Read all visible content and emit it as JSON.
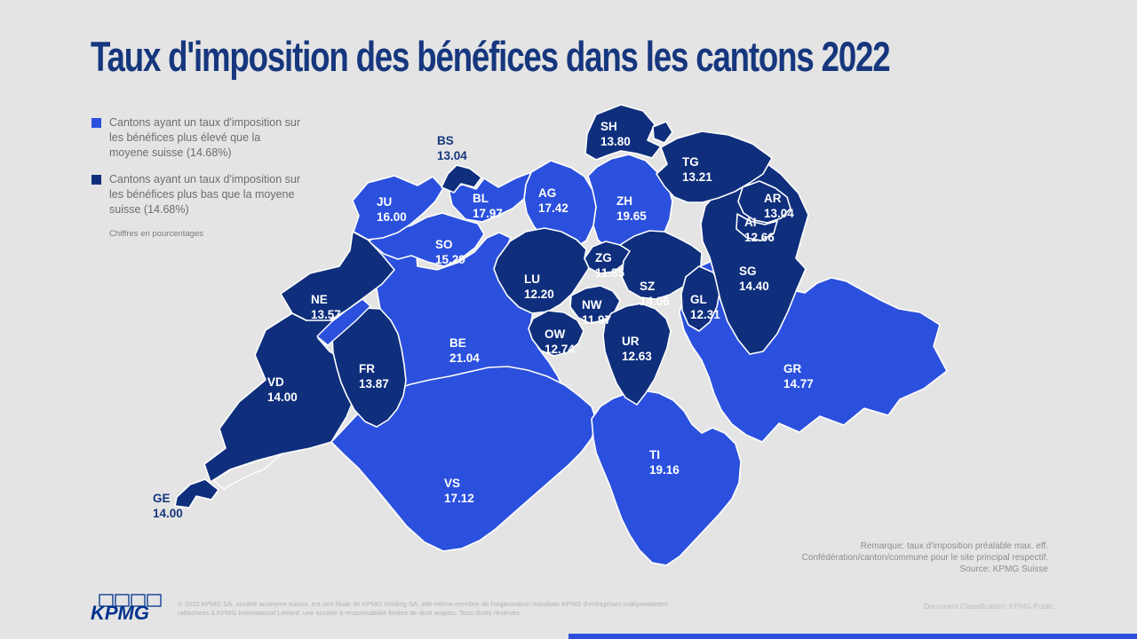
{
  "page": {
    "background": "#e4e4e4"
  },
  "title": "Taux d'imposition des bénéfices dans les cantons 2022",
  "legend": {
    "items": [
      {
        "label": "Cantons ayant un taux d'imposition sur les bénéfices plus élevé que la moyene suisse (14.68%)",
        "color": "#2b50dd"
      },
      {
        "label": "Cantons ayant un taux d'imposition sur les bénéfices plus bas que la moyene suisse (14.68%)",
        "color": "#0f2f7d"
      }
    ],
    "note": "Chiffres en pourcentages"
  },
  "chart_data": {
    "type": "heatmap",
    "subtype": "choropleth-map",
    "region": "Switzerland cantons",
    "title": "Taux d'imposition des bénéfices dans les cantons 2022",
    "unit": "%",
    "swiss_average": 14.68,
    "colors": {
      "above": "#2b50dd",
      "below": "#0f2f7d"
    },
    "cantons": [
      {
        "code": "JU",
        "value": "16.00",
        "category": "above"
      },
      {
        "code": "BS",
        "value": "13.04",
        "category": "below"
      },
      {
        "code": "BL",
        "value": "17.97",
        "category": "above"
      },
      {
        "code": "SO",
        "value": "15.29",
        "category": "above"
      },
      {
        "code": "AG",
        "value": "17.42",
        "category": "above"
      },
      {
        "code": "ZH",
        "value": "19.65",
        "category": "above"
      },
      {
        "code": "SH",
        "value": "13.80",
        "category": "below"
      },
      {
        "code": "TG",
        "value": "13.21",
        "category": "below"
      },
      {
        "code": "AR",
        "value": "13.04",
        "category": "below"
      },
      {
        "code": "AI",
        "value": "12.66",
        "category": "below"
      },
      {
        "code": "SG",
        "value": "14.40",
        "category": "below"
      },
      {
        "code": "ZG",
        "value": "11.85",
        "category": "below"
      },
      {
        "code": "LU",
        "value": "12.20",
        "category": "below"
      },
      {
        "code": "SZ",
        "value": "14.06",
        "category": "below"
      },
      {
        "code": "GL",
        "value": "12.31",
        "category": "below"
      },
      {
        "code": "NE",
        "value": "13.57",
        "category": "below"
      },
      {
        "code": "NW",
        "value": "11.97",
        "category": "below"
      },
      {
        "code": "OW",
        "value": "12.74",
        "category": "below"
      },
      {
        "code": "UR",
        "value": "12.63",
        "category": "below"
      },
      {
        "code": "BE",
        "value": "21.04",
        "category": "above"
      },
      {
        "code": "FR",
        "value": "13.87",
        "category": "below"
      },
      {
        "code": "VD",
        "value": "14.00",
        "category": "below"
      },
      {
        "code": "GE",
        "value": "14.00",
        "category": "below"
      },
      {
        "code": "VS",
        "value": "17.12",
        "category": "above"
      },
      {
        "code": "TI",
        "value": "19.16",
        "category": "above"
      },
      {
        "code": "GR",
        "value": "14.77",
        "category": "above"
      }
    ]
  },
  "footnote": {
    "lines": [
      "Remarque: taux d'imposition préalable max. eff.",
      "Confédération/canton/commune pour le site principal respectif.",
      "Source: KPMG Suisse"
    ]
  },
  "footer": {
    "logo_text": "KPMG",
    "copyright_lines": [
      "© 2022 KPMG SA, société anonyme suisse, est une filiale de KPMG Holding SA, elle-même membre de l'organisation mondiale KPMG d'entreprises indépendantes",
      "rattachées à KPMG International Limited, une société à responsabilité limitée de droit anglais. Tous droits réservés."
    ],
    "classification": "Document Classification: KPMG Public"
  }
}
